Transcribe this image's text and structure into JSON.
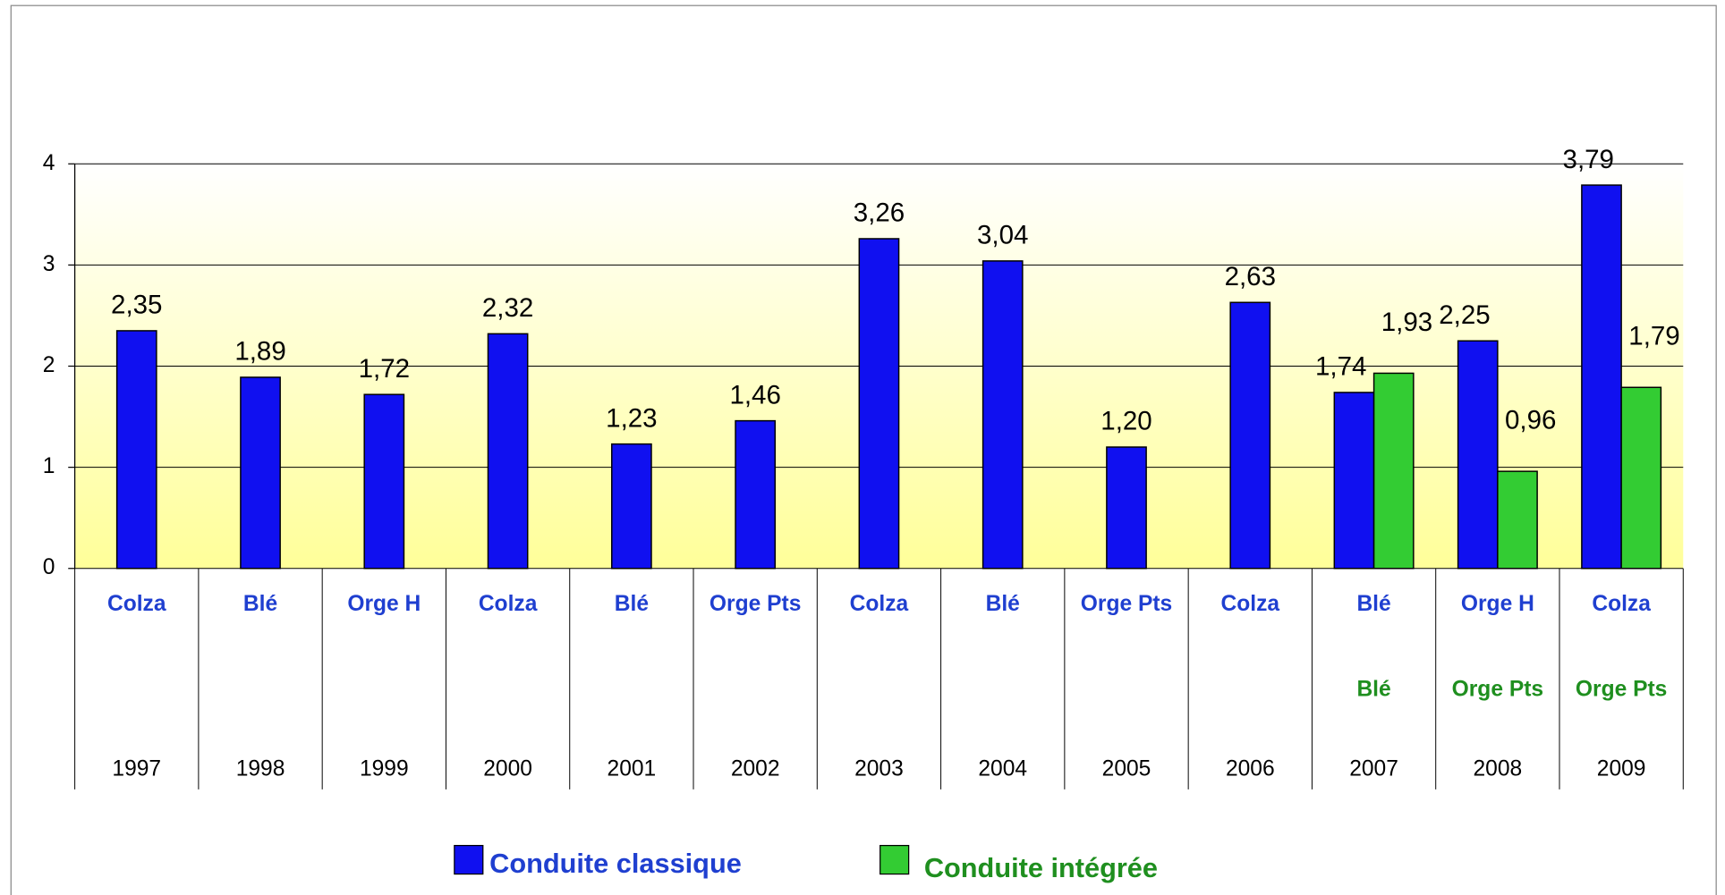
{
  "chart_data": {
    "type": "bar",
    "categories": [
      "1997",
      "1998",
      "1999",
      "2000",
      "2001",
      "2002",
      "2003",
      "2004",
      "2005",
      "2006",
      "2007",
      "2008",
      "2009"
    ],
    "series": [
      {
        "name": "Conduite classique",
        "color": "#1010f0",
        "text_color": "#1f3fd0",
        "crops": [
          "Colza",
          "Blé",
          "Orge H",
          "Colza",
          "Blé",
          "Orge Pts",
          "Colza",
          "Blé",
          "Orge Pts",
          "Colza",
          "Blé",
          "Orge H",
          "Colza"
        ],
        "values": [
          2.35,
          1.89,
          1.72,
          2.32,
          1.23,
          1.46,
          3.26,
          3.04,
          1.2,
          2.63,
          1.74,
          2.25,
          3.79
        ],
        "value_labels": [
          "2,35",
          "1,89",
          "1,72",
          "2,32",
          "1,23",
          "1,46",
          "3,26",
          "3,04",
          "1,20",
          "2,63",
          "1,74",
          "2,25",
          "3,79"
        ]
      },
      {
        "name": "Conduite intégrée",
        "color": "#33cc33",
        "text_color": "#1f8f1f",
        "crops": [
          null,
          null,
          null,
          null,
          null,
          null,
          null,
          null,
          null,
          null,
          "Blé",
          "Orge Pts",
          "Orge Pts"
        ],
        "values": [
          null,
          null,
          null,
          null,
          null,
          null,
          null,
          null,
          null,
          null,
          1.93,
          0.96,
          1.79
        ],
        "value_labels": [
          null,
          null,
          null,
          null,
          null,
          null,
          null,
          null,
          null,
          null,
          "1,93",
          "0,96",
          "1,79"
        ]
      }
    ],
    "ylim": [
      0,
      4
    ],
    "yticks": [
      0,
      1,
      2,
      3,
      4
    ],
    "grid": true
  }
}
